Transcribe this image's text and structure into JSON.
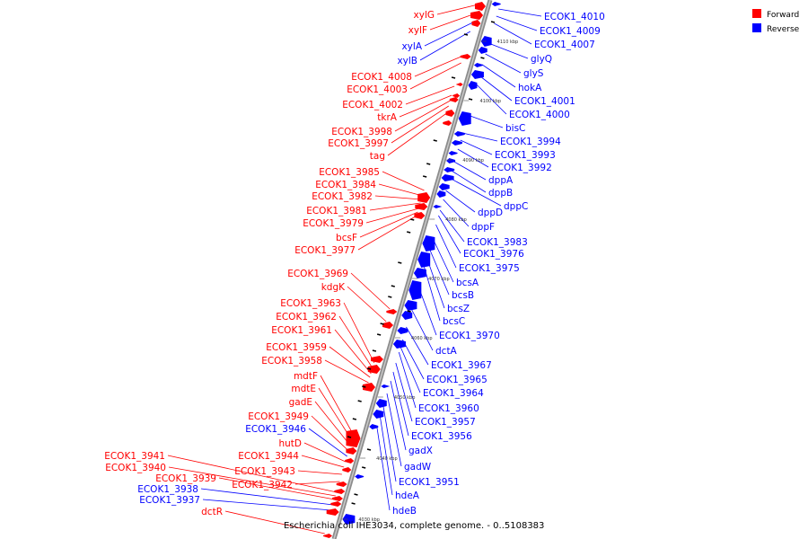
{
  "caption": "Escherichia coli IHE3034, complete genome. - 0..5108383",
  "legend": [
    {
      "label": "Forward",
      "color": "#ff0000"
    },
    {
      "label": "Reverse",
      "color": "#0000ff"
    }
  ],
  "ticks": [
    "4110 kbp",
    "4100 kbp",
    "4090 kbp",
    "4080 kbp",
    "4070 kbp",
    "4060 kbp",
    "4050 kbp",
    "4040 kbp",
    "4030 kbp"
  ],
  "left_labels": [
    {
      "text": "xylG",
      "strand": "forward"
    },
    {
      "text": "xylF",
      "strand": "forward"
    },
    {
      "text": "xylA",
      "strand": "reverse"
    },
    {
      "text": "xylB",
      "strand": "reverse"
    },
    {
      "text": "ECOK1_4008",
      "strand": "forward"
    },
    {
      "text": "ECOK1_4003",
      "strand": "forward"
    },
    {
      "text": "ECOK1_4002",
      "strand": "forward"
    },
    {
      "text": "tkrA",
      "strand": "forward"
    },
    {
      "text": "ECOK1_3998",
      "strand": "forward"
    },
    {
      "text": "ECOK1_3997",
      "strand": "forward"
    },
    {
      "text": "tag",
      "strand": "forward"
    },
    {
      "text": "ECOK1_3985",
      "strand": "forward"
    },
    {
      "text": "ECOK1_3984",
      "strand": "forward"
    },
    {
      "text": "ECOK1_3982",
      "strand": "forward"
    },
    {
      "text": "ECOK1_3981",
      "strand": "forward"
    },
    {
      "text": "ECOK1_3979",
      "strand": "forward"
    },
    {
      "text": "bcsF",
      "strand": "forward"
    },
    {
      "text": "ECOK1_3977",
      "strand": "forward"
    },
    {
      "text": "ECOK1_3969",
      "strand": "forward"
    },
    {
      "text": "kdgK",
      "strand": "forward"
    },
    {
      "text": "ECOK1_3963",
      "strand": "forward"
    },
    {
      "text": "ECOK1_3962",
      "strand": "forward"
    },
    {
      "text": "ECOK1_3961",
      "strand": "forward"
    },
    {
      "text": "ECOK1_3959",
      "strand": "forward"
    },
    {
      "text": "ECOK1_3958",
      "strand": "forward"
    },
    {
      "text": "mdtF",
      "strand": "forward"
    },
    {
      "text": "mdtE",
      "strand": "forward"
    },
    {
      "text": "gadE",
      "strand": "forward"
    },
    {
      "text": "ECOK1_3949",
      "strand": "forward"
    },
    {
      "text": "ECOK1_3946",
      "strand": "reverse"
    },
    {
      "text": "hutD",
      "strand": "forward"
    },
    {
      "text": "ECOK1_3944",
      "strand": "forward"
    },
    {
      "text": "ECOK1_3943",
      "strand": "forward"
    },
    {
      "text": "ECOK1_3942",
      "strand": "forward"
    },
    {
      "text": "ECOK1_3941",
      "strand": "forward"
    },
    {
      "text": "ECOK1_3940",
      "strand": "forward"
    },
    {
      "text": "ECOK1_3939",
      "strand": "forward"
    },
    {
      "text": "ECOK1_3938",
      "strand": "reverse"
    },
    {
      "text": "ECOK1_3937",
      "strand": "reverse"
    },
    {
      "text": "dctR",
      "strand": "forward"
    }
  ],
  "right_labels": [
    {
      "text": "ECOK1_4010",
      "strand": "reverse"
    },
    {
      "text": "ECOK1_4009",
      "strand": "reverse"
    },
    {
      "text": "ECOK1_4007",
      "strand": "reverse"
    },
    {
      "text": "glyQ",
      "strand": "reverse"
    },
    {
      "text": "glyS",
      "strand": "reverse"
    },
    {
      "text": "hokA",
      "strand": "reverse"
    },
    {
      "text": "ECOK1_4001",
      "strand": "reverse"
    },
    {
      "text": "ECOK1_4000",
      "strand": "reverse"
    },
    {
      "text": "bisC",
      "strand": "reverse"
    },
    {
      "text": "ECOK1_3994",
      "strand": "reverse"
    },
    {
      "text": "ECOK1_3993",
      "strand": "reverse"
    },
    {
      "text": "ECOK1_3992",
      "strand": "reverse"
    },
    {
      "text": "dppA",
      "strand": "reverse"
    },
    {
      "text": "dppB",
      "strand": "reverse"
    },
    {
      "text": "dppC",
      "strand": "reverse"
    },
    {
      "text": "dppD",
      "strand": "reverse"
    },
    {
      "text": "dppF",
      "strand": "reverse"
    },
    {
      "text": "ECOK1_3983",
      "strand": "reverse"
    },
    {
      "text": "ECOK1_3976",
      "strand": "reverse"
    },
    {
      "text": "ECOK1_3975",
      "strand": "reverse"
    },
    {
      "text": "bcsA",
      "strand": "reverse"
    },
    {
      "text": "bcsB",
      "strand": "reverse"
    },
    {
      "text": "bcsZ",
      "strand": "reverse"
    },
    {
      "text": "bcsC",
      "strand": "reverse"
    },
    {
      "text": "ECOK1_3970",
      "strand": "reverse"
    },
    {
      "text": "dctA",
      "strand": "reverse"
    },
    {
      "text": "ECOK1_3967",
      "strand": "reverse"
    },
    {
      "text": "ECOK1_3965",
      "strand": "reverse"
    },
    {
      "text": "ECOK1_3964",
      "strand": "reverse"
    },
    {
      "text": "ECOK1_3960",
      "strand": "reverse"
    },
    {
      "text": "ECOK1_3957",
      "strand": "reverse"
    },
    {
      "text": "ECOK1_3956",
      "strand": "reverse"
    },
    {
      "text": "gadX",
      "strand": "reverse"
    },
    {
      "text": "gadW",
      "strand": "reverse"
    },
    {
      "text": "ECOK1_3951",
      "strand": "reverse"
    },
    {
      "text": "hdeA",
      "strand": "reverse"
    },
    {
      "text": "hdeB",
      "strand": "reverse"
    }
  ]
}
